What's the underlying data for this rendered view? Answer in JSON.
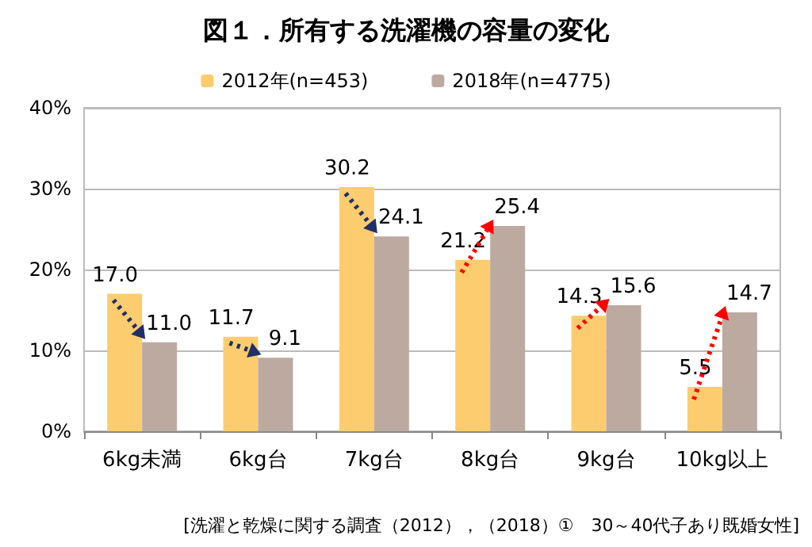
{
  "chart_data": {
    "type": "bar",
    "title": "図１．所有する洗濯機の容量の変化",
    "categories": [
      "6kg未満",
      "6kg台",
      "7kg台",
      "8kg台",
      "9kg台",
      "10kg以上"
    ],
    "series": [
      {
        "name": "2012年(n=453)",
        "color": "#fdcc6e",
        "values": [
          17.0,
          11.7,
          30.2,
          21.2,
          14.3,
          5.5
        ],
        "value_labels": [
          "17.0",
          "11.7",
          "30.2",
          "21.2",
          "14.3",
          "5.5"
        ]
      },
      {
        "name": "2018年(n=4775)",
        "color": "#bcaaa0",
        "values": [
          11.0,
          9.1,
          24.1,
          25.4,
          15.6,
          14.7
        ],
        "value_labels": [
          "11.0",
          "9.1",
          "24.1",
          "25.4",
          "15.6",
          "14.7"
        ]
      }
    ],
    "ylim": [
      0,
      40
    ],
    "yticks": [
      {
        "value": 0,
        "label": "0%"
      },
      {
        "value": 10,
        "label": "10%"
      },
      {
        "value": 20,
        "label": "20%"
      },
      {
        "value": 30,
        "label": "30%"
      },
      {
        "value": 40,
        "label": "40%"
      }
    ],
    "grid": "y",
    "legend": "top",
    "annotations": [
      "[洗濯と乾燥に関する調査（2012），（2018）①　30～40代子あり既婚女性]"
    ]
  }
}
